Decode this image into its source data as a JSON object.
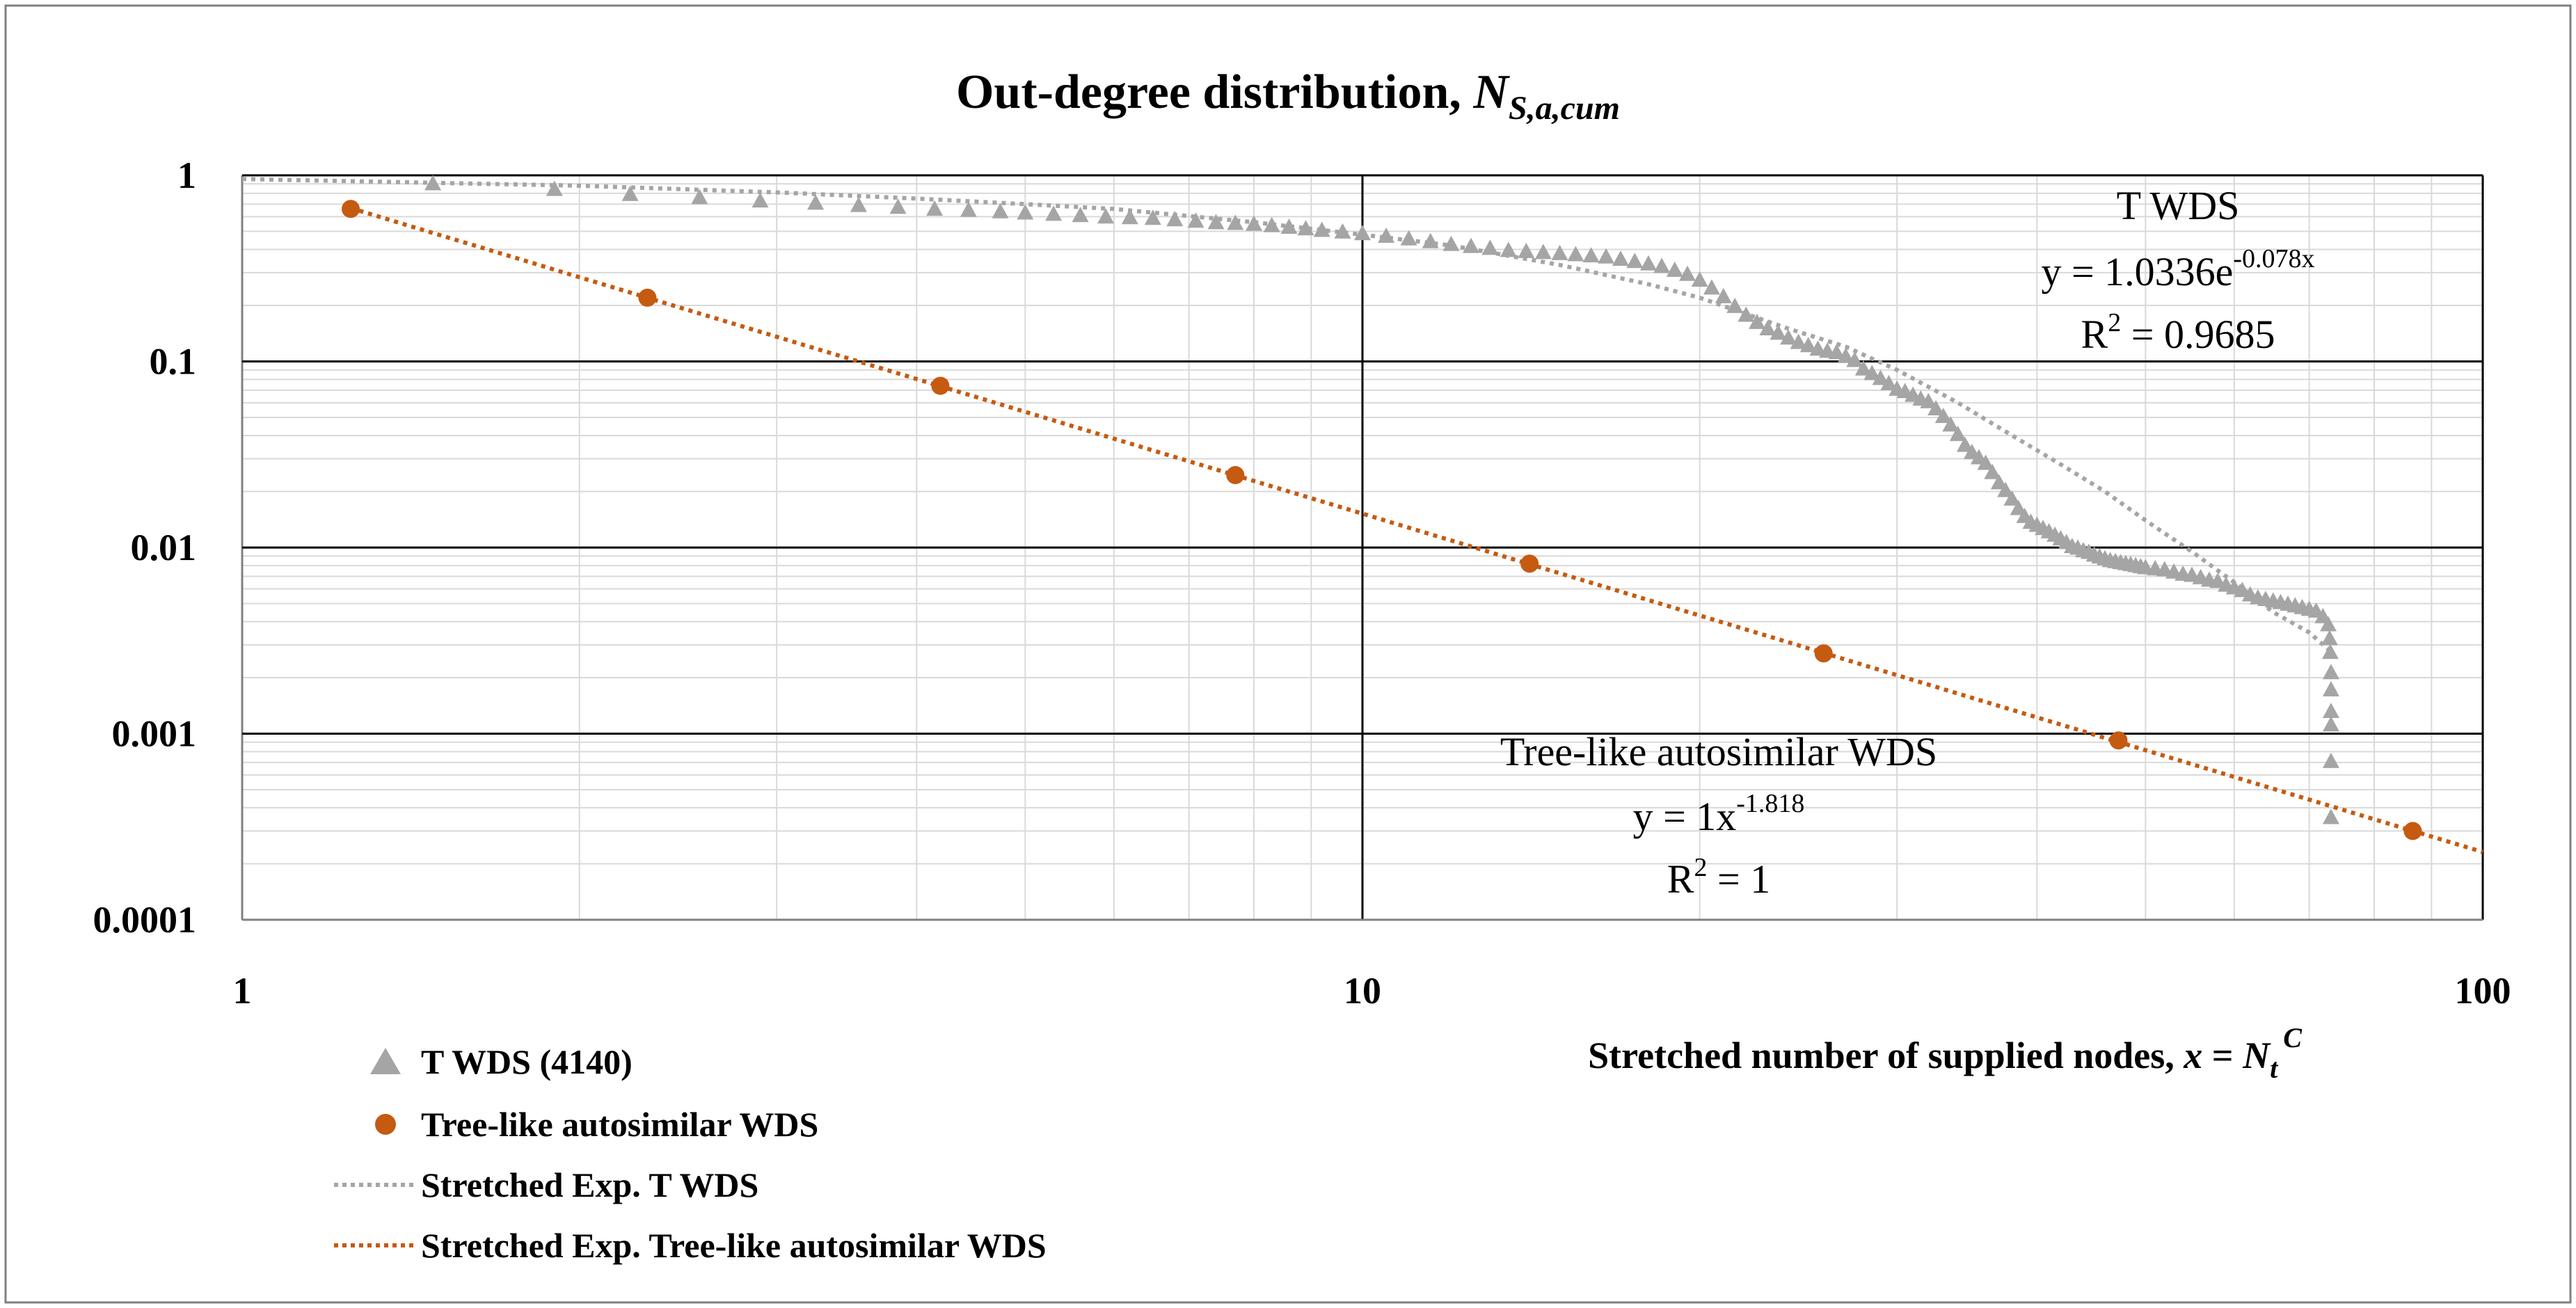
{
  "chart_data": {
    "type": "scatter",
    "title": "Out-degree distribution, ",
    "title_symbol": "N",
    "title_subscript": "S,a,cum",
    "xlabel": "Stretched number of supplied nodes, ",
    "xlabel_symbol_x": "x",
    "xlabel_eq": " = ",
    "xlabel_symbol": "N",
    "xlabel_subscript": "t",
    "xlabel_superscript": "C",
    "ylabel": "",
    "x_scale": "log",
    "y_scale": "log",
    "xlim": [
      1,
      100
    ],
    "ylim": [
      0.0001,
      1
    ],
    "x_ticks": [
      "1",
      "10",
      "100"
    ],
    "y_ticks": [
      "1",
      "0.1",
      "0.01",
      "0.001",
      "0.0001"
    ],
    "grid": true,
    "legend_position": "bottom-left",
    "series": [
      {
        "name": "T WDS (4140)",
        "kind": "scatter",
        "marker": "triangle",
        "color": "#A5A5A5",
        "x": [
          1.48,
          1.9,
          2.22,
          2.56,
          2.9,
          3.25,
          3.55,
          3.85,
          4.15,
          4.45,
          4.75,
          5.0,
          5.3,
          5.6,
          5.9,
          6.2,
          6.5,
          6.8,
          7.1,
          7.4,
          7.7,
          8.0,
          8.3,
          8.6,
          8.9,
          9.2,
          9.6,
          10.0,
          10.5,
          11.0,
          11.5,
          12.0,
          12.5,
          13.0,
          13.5,
          14.0,
          14.5,
          15.0,
          15.5,
          16.0,
          16.5,
          17.0,
          17.5,
          18.0,
          18.5,
          19.0,
          19.5,
          20.0,
          20.5,
          21.0,
          21.5,
          22.0,
          22.5,
          23.0,
          23.5,
          24.0,
          24.5,
          25.0,
          25.5,
          26.0,
          26.5,
          27.0,
          27.5,
          28.0,
          28.5,
          29.0,
          29.5,
          30.0,
          30.5,
          31.0,
          31.5,
          32.0,
          32.5,
          33.0,
          33.5,
          34.0,
          34.5,
          35.0,
          35.5,
          36.0,
          36.5,
          37.0,
          37.5,
          38.0,
          38.5,
          39.0,
          39.5,
          40.0,
          40.5,
          41.0,
          41.5,
          42.0,
          42.5,
          43.0,
          43.5,
          44.0,
          44.5,
          45.0,
          45.5,
          46.0,
          46.5,
          47.0,
          47.5,
          48.0,
          48.5,
          49.0,
          49.5,
          50.0,
          51.0,
          52.0,
          53.0,
          54.0,
          55.0,
          56.0,
          57.0,
          58.0,
          59.0,
          60.0,
          61.0,
          62.0,
          63.0,
          64.0,
          65.0,
          66.0,
          67.0,
          68.0,
          69.0,
          70.0,
          71.0,
          72.0,
          72.8,
          73.0,
          73.1,
          73.2,
          73.2,
          73.2,
          73.2,
          73.2,
          73.2
        ],
        "y": [
          0.89,
          0.83,
          0.78,
          0.75,
          0.72,
          0.7,
          0.68,
          0.665,
          0.65,
          0.64,
          0.63,
          0.62,
          0.61,
          0.6,
          0.59,
          0.585,
          0.58,
          0.57,
          0.56,
          0.55,
          0.545,
          0.54,
          0.53,
          0.52,
          0.51,
          0.5,
          0.49,
          0.48,
          0.465,
          0.45,
          0.435,
          0.42,
          0.41,
          0.4,
          0.39,
          0.385,
          0.38,
          0.375,
          0.37,
          0.365,
          0.36,
          0.35,
          0.34,
          0.33,
          0.32,
          0.305,
          0.29,
          0.27,
          0.245,
          0.22,
          0.195,
          0.175,
          0.16,
          0.148,
          0.14,
          0.132,
          0.125,
          0.12,
          0.115,
          0.112,
          0.11,
          0.105,
          0.1,
          0.09,
          0.085,
          0.08,
          0.075,
          0.07,
          0.068,
          0.065,
          0.062,
          0.06,
          0.055,
          0.05,
          0.045,
          0.04,
          0.035,
          0.032,
          0.03,
          0.028,
          0.025,
          0.022,
          0.02,
          0.018,
          0.016,
          0.0145,
          0.0135,
          0.013,
          0.0125,
          0.012,
          0.0115,
          0.011,
          0.0105,
          0.01,
          0.0098,
          0.0095,
          0.0093,
          0.009,
          0.0088,
          0.0086,
          0.0084,
          0.0083,
          0.0082,
          0.0081,
          0.008,
          0.0079,
          0.0078,
          0.0077,
          0.0076,
          0.0075,
          0.0073,
          0.0071,
          0.007,
          0.0068,
          0.0066,
          0.0065,
          0.0062,
          0.006,
          0.0058,
          0.0055,
          0.0053,
          0.0052,
          0.0051,
          0.005,
          0.0049,
          0.0048,
          0.0047,
          0.0046,
          0.0045,
          0.0042,
          0.0038,
          0.0032,
          0.0027,
          0.0021,
          0.0017,
          0.0013,
          0.0011,
          0.0007,
          0.00035
        ]
      },
      {
        "name": "Tree-like autosimilar WDS",
        "kind": "scatter",
        "marker": "circle",
        "color": "#C55A11",
        "x": [
          1.25,
          2.3,
          4.2,
          7.7,
          14.1,
          25.8,
          47.3,
          86.6
        ],
        "y": [
          0.66,
          0.22,
          0.074,
          0.0245,
          0.0082,
          0.0027,
          0.00092,
          0.0003
        ]
      },
      {
        "name": "Stretched Exp. T WDS",
        "kind": "dotted-line",
        "color": "#A5A5A5",
        "equation_a": 1.0336,
        "equation_b": -0.078,
        "x_points": [
          1,
          2,
          3,
          4,
          5,
          6,
          8,
          10,
          12,
          15,
          18,
          20,
          22,
          24,
          27,
          30,
          34,
          38,
          42,
          46,
          50,
          55,
          60,
          65,
          70,
          73
        ],
        "y_points": [
          0.955,
          0.88,
          0.81,
          0.75,
          0.7,
          0.66,
          0.56,
          0.48,
          0.42,
          0.33,
          0.26,
          0.22,
          0.18,
          0.15,
          0.12,
          0.09,
          0.06,
          0.04,
          0.028,
          0.02,
          0.014,
          0.0095,
          0.0065,
          0.0045,
          0.0035,
          0.0028
        ]
      },
      {
        "name": "Stretched Exp. Tree-like autosimilar WDS",
        "kind": "dotted-line",
        "color": "#C55A11",
        "equation_a": 1,
        "equation_b": -1.818,
        "x_range": [
          1.25,
          100
        ]
      }
    ],
    "annotations": {
      "t_wds": {
        "name": "T WDS",
        "eq_prefix": "y = 1.0336e",
        "eq_sup": "-0.078x",
        "r2_prefix": "R",
        "r2_sup": "2",
        "r2_value": " = 0.9685"
      },
      "tree": {
        "name": "Tree-like autosimilar WDS",
        "eq_prefix": "y = 1x",
        "eq_sup": "-1.818",
        "r2_prefix": "R",
        "r2_sup": "2",
        "r2_value": " = 1"
      }
    },
    "legend": [
      {
        "label": "T WDS (4140)",
        "symbol": "triangle",
        "color": "#A5A5A5"
      },
      {
        "label": "Tree-like autosimilar WDS",
        "symbol": "circle",
        "color": "#C55A11"
      },
      {
        "label": "Stretched Exp. T WDS",
        "symbol": "dotted-line",
        "color": "#A5A5A5"
      },
      {
        "label": "Stretched Exp. Tree-like autosimilar WDS",
        "symbol": "dotted-line",
        "color": "#C55A11"
      }
    ]
  }
}
